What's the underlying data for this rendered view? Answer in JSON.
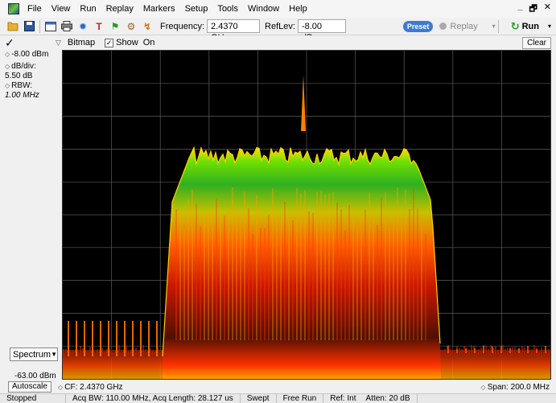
{
  "menubar": {
    "items": [
      "File",
      "View",
      "Run",
      "Replay",
      "Markers",
      "Setup",
      "Tools",
      "Window",
      "Help"
    ],
    "window_controls": [
      "_",
      "🗗",
      "✕"
    ]
  },
  "toolbar": {
    "icons": [
      "folder-open-icon",
      "save-icon",
      "window-icon",
      "print-icon",
      "gear-icon",
      "trace-icon",
      "marker-icon",
      "settings-icon",
      "analysis-icon"
    ],
    "frequency_label": "Frequency:",
    "frequency_value": "2.4370 GHz",
    "reflev_label": "RefLev:",
    "reflev_value": "-8.00 dBm",
    "preset_label": "Preset",
    "replay_label": "Replay",
    "run_label": "Run"
  },
  "left_panel": {
    "ref_level": "-8.00 dBm",
    "db_div_label": "dB/div:",
    "db_div_value": "5.50 dB",
    "rbw_label": "RBW:",
    "rbw_value": "1.00 MHz",
    "spectrum_select": "Spectrum",
    "bottom_level": "-63.00 dBm"
  },
  "display_bar": {
    "mode": "Bitmap",
    "show_label": "Show",
    "show_state": "On",
    "clear_label": "Clear"
  },
  "axis_bar": {
    "autoscale_label": "Autoscale",
    "cf_text": "CF: 2.4370 GHz",
    "span_text": "Span: 200.0 MHz"
  },
  "status_bar": {
    "cells": [
      "Stopped",
      "Acq BW: 110.00 MHz, Acq Length: 28.127 us",
      "Swept",
      "Free Run",
      "Ref: Int",
      "Atten: 20 dB"
    ]
  },
  "colors": {
    "plot_bg": "#000000",
    "grid": "#5a5a5a",
    "spectrum_hot": "#ff2a00",
    "spectrum_mid": "#ffa000",
    "spectrum_warm": "#ffe000",
    "spectrum_cool": "#70e000",
    "spectrum_cold": "#30b020"
  }
}
